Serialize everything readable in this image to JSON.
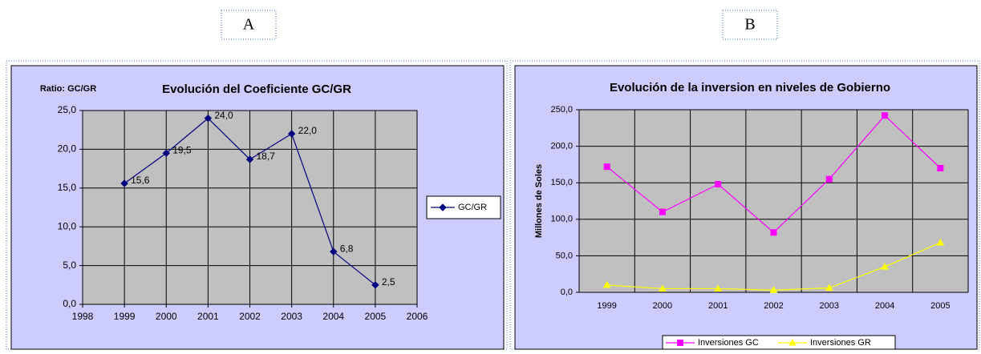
{
  "panel_labels": [
    "A",
    "B"
  ],
  "chart_data": [
    {
      "type": "line",
      "title": "Evolución del Coeficiente GC/GR",
      "y_label": "Ratio: GC/GR",
      "x": [
        1999,
        2000,
        2001,
        2002,
        2003,
        2004,
        2005
      ],
      "xlim": [
        1998,
        2006
      ],
      "xticks": [
        1998,
        1999,
        2000,
        2001,
        2002,
        2003,
        2004,
        2005,
        2006
      ],
      "ylim": [
        0,
        25
      ],
      "yticks": [
        {
          "value": 0,
          "label": "0,0"
        },
        {
          "value": 5,
          "label": "5,0"
        },
        {
          "value": 10,
          "label": "10,0"
        },
        {
          "value": 15,
          "label": "15,0"
        },
        {
          "value": 20,
          "label": "20,0"
        },
        {
          "value": 25,
          "label": "25,0"
        }
      ],
      "grid": true,
      "legend": "right",
      "series": [
        {
          "name": "GC/GR",
          "color": "#000080",
          "marker": "diamond",
          "values": [
            15.6,
            19.5,
            24.0,
            18.7,
            22.0,
            6.8,
            2.5
          ],
          "value_labels": [
            "15,6",
            "19,5",
            "24,0",
            "18,7",
            "22,0",
            "6,8",
            "2,5"
          ]
        }
      ]
    },
    {
      "type": "line",
      "title": "Evolución de la inversion en niveles de Gobierno",
      "y_label": "Millones de Soles",
      "categories": [
        "1999",
        "2000",
        "2001",
        "2002",
        "2003",
        "2004",
        "2005"
      ],
      "ylim": [
        0,
        250
      ],
      "yticks": [
        {
          "value": 0,
          "label": "0,0"
        },
        {
          "value": 50,
          "label": "50,0"
        },
        {
          "value": 100,
          "label": "100,0"
        },
        {
          "value": 150,
          "label": "150,0"
        },
        {
          "value": 200,
          "label": "200,0"
        },
        {
          "value": 250,
          "label": "250,0"
        }
      ],
      "grid": true,
      "legend": "bottom",
      "series": [
        {
          "name": "Inversiones GC",
          "color": "#ff00ff",
          "marker": "square",
          "values": [
            172,
            110,
            148,
            82,
            155,
            242,
            170
          ]
        },
        {
          "name": "Inversiones GR",
          "color": "#ffff00",
          "marker": "triangle",
          "values": [
            10,
            5,
            5,
            3,
            6,
            35,
            68
          ]
        }
      ]
    }
  ]
}
